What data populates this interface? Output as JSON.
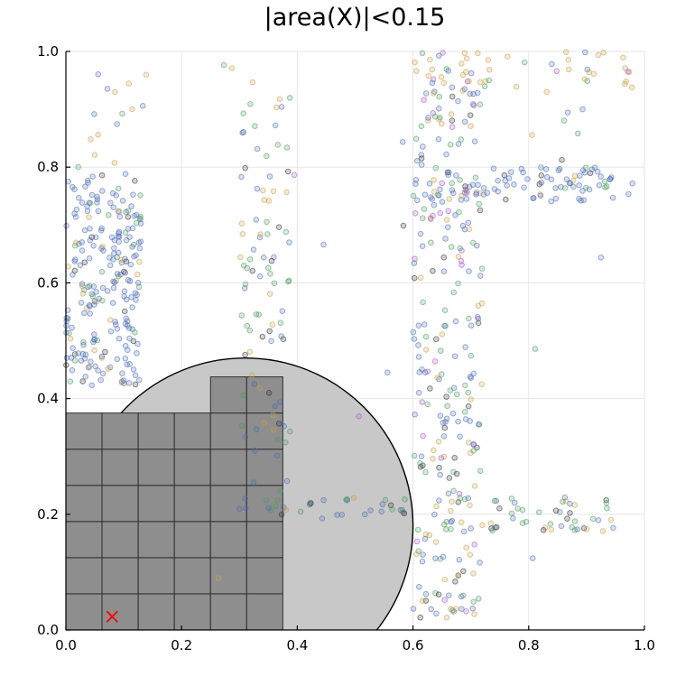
{
  "chart_data": {
    "type": "scatter",
    "title": "|area(X)|<0.15",
    "xlabel": "",
    "ylabel": "",
    "xlim": [
      0,
      1
    ],
    "ylim": [
      0,
      1
    ],
    "xticks": [
      "0.0",
      "0.2",
      "0.4",
      "0.6",
      "0.8",
      "1.0"
    ],
    "yticks": [
      "0.0",
      "0.2",
      "0.4",
      "0.6",
      "0.8",
      "1.0"
    ],
    "grid": true,
    "legend": "none",
    "colors": {
      "circle_fill": "#c8c8c8",
      "cell_fill": "#8e8e8e",
      "cell_edge": "#2e2e2e",
      "marker": "#ff0000",
      "palette": [
        "#4e6fb5",
        "#4f9c63",
        "#c9a14a",
        "#a55bc4",
        "#333333"
      ]
    },
    "circle": {
      "cx": 0.31,
      "cy": 0.18,
      "r": 0.29
    },
    "marker_point": {
      "x": 0.08,
      "y": 0.023,
      "symbol": "x"
    },
    "boxes": [
      {
        "x0": 0.0,
        "x1": 0.0625,
        "y0": 0.0,
        "y1": 0.375
      },
      {
        "x0": 0.0625,
        "x1": 0.125,
        "y0": 0.0,
        "y1": 0.375
      },
      {
        "x0": 0.125,
        "x1": 0.1875,
        "y0": 0.0,
        "y1": 0.375
      },
      {
        "x0": 0.1875,
        "x1": 0.25,
        "y0": 0.0,
        "y1": 0.375
      },
      {
        "x0": 0.25,
        "x1": 0.3125,
        "y0": 0.0,
        "y1": 0.4375
      },
      {
        "x0": 0.3125,
        "x1": 0.375,
        "y0": 0.0,
        "y1": 0.4375
      }
    ],
    "box_rows": [
      0.0625,
      0.125,
      0.1875,
      0.25,
      0.3125
    ],
    "clusters": [
      {
        "name": "left column",
        "x": [
          0.0,
          0.13
        ],
        "y": [
          0.42,
          0.79
        ],
        "n": 230,
        "mix": [
          0.75,
          0.12,
          0.08,
          0.0,
          0.05
        ]
      },
      {
        "name": "left sparse top",
        "x": [
          0.02,
          0.15
        ],
        "y": [
          0.8,
          0.99
        ],
        "n": 14,
        "mix": [
          0.3,
          0.2,
          0.4,
          0.0,
          0.1
        ]
      },
      {
        "name": "middle column",
        "x": [
          0.3,
          0.39
        ],
        "y": [
          0.2,
          0.95
        ],
        "n": 95,
        "mix": [
          0.3,
          0.35,
          0.25,
          0.0,
          0.1
        ]
      },
      {
        "name": "middle bar",
        "x": [
          0.35,
          0.6
        ],
        "y": [
          0.19,
          0.23
        ],
        "n": 28,
        "mix": [
          0.3,
          0.4,
          0.1,
          0.0,
          0.2
        ]
      },
      {
        "name": "right column",
        "x": [
          0.6,
          0.72
        ],
        "y": [
          0.02,
          0.98
        ],
        "n": 260,
        "mix": [
          0.35,
          0.25,
          0.2,
          0.1,
          0.1
        ]
      },
      {
        "name": "right top bar",
        "x": [
          0.63,
          0.98
        ],
        "y": [
          0.74,
          0.8
        ],
        "n": 90,
        "mix": [
          0.75,
          0.1,
          0.05,
          0.05,
          0.05
        ]
      },
      {
        "name": "right bottom bar",
        "x": [
          0.63,
          0.95
        ],
        "y": [
          0.17,
          0.23
        ],
        "n": 55,
        "mix": [
          0.3,
          0.4,
          0.15,
          0.0,
          0.15
        ]
      },
      {
        "name": "top right sparse",
        "x": [
          0.6,
          0.98
        ],
        "y": [
          0.93,
          1.0
        ],
        "n": 45,
        "mix": [
          0.1,
          0.1,
          0.75,
          0.05,
          0.0
        ]
      },
      {
        "name": "scattered",
        "x": [
          0.0,
          1.0
        ],
        "y": [
          0.0,
          1.0
        ],
        "n": 30,
        "mix": [
          0.25,
          0.25,
          0.25,
          0.1,
          0.15
        ]
      }
    ]
  }
}
